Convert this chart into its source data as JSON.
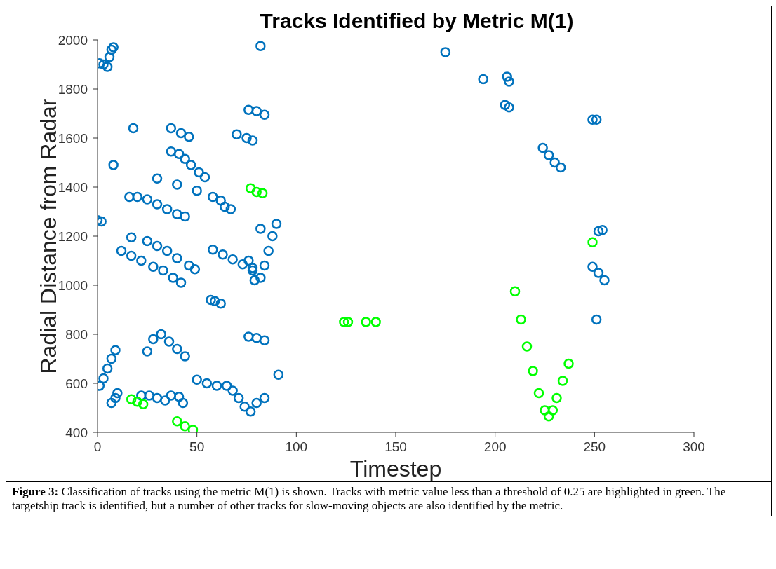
{
  "chart_data": {
    "type": "scatter",
    "title": "Tracks Identified by Metric M(1)",
    "xlabel": "Timestep",
    "ylabel": "Radial Distance from Radar",
    "xlim": [
      0,
      300
    ],
    "xticks": [
      0,
      50,
      100,
      150,
      200,
      250,
      300
    ],
    "ylim": [
      400,
      2000
    ],
    "yticks": [
      400,
      600,
      800,
      1000,
      1200,
      1400,
      1600,
      1800,
      2000
    ],
    "grid": false,
    "legend": false,
    "marker": "circle",
    "series": [
      {
        "color": "#0072bd",
        "x": [
          1,
          3,
          5,
          6,
          7,
          8,
          18,
          8,
          0,
          2,
          1,
          3,
          5,
          7,
          9,
          7,
          9,
          10,
          16,
          20,
          25,
          30,
          35,
          40,
          44,
          30,
          40,
          50,
          58,
          62,
          37,
          42,
          46,
          37,
          41,
          44,
          47,
          51,
          54,
          64,
          67,
          70,
          75,
          78,
          76,
          80,
          84,
          82,
          82,
          17,
          25,
          30,
          35,
          40,
          46,
          49,
          12,
          17,
          22,
          28,
          33,
          38,
          42,
          58,
          63,
          68,
          73,
          78,
          76,
          78,
          79,
          82,
          84,
          86,
          88,
          90,
          57,
          59,
          62,
          25,
          28,
          32,
          36,
          40,
          44,
          76,
          80,
          84,
          50,
          55,
          60,
          65,
          68,
          71,
          74,
          77,
          80,
          84,
          91,
          22,
          26,
          30,
          34,
          37,
          41,
          43,
          175,
          194,
          206,
          207,
          205,
          207,
          249,
          251,
          224,
          227,
          230,
          233,
          252,
          254,
          249,
          252,
          255,
          251
        ],
        "values": [
          1905,
          1900,
          1890,
          1930,
          1960,
          1970,
          1640,
          1490,
          1265,
          1260,
          590,
          620,
          660,
          700,
          735,
          520,
          540,
          560,
          1360,
          1360,
          1350,
          1330,
          1310,
          1290,
          1280,
          1435,
          1410,
          1385,
          1360,
          1345,
          1640,
          1620,
          1605,
          1545,
          1535,
          1515,
          1490,
          1460,
          1440,
          1320,
          1310,
          1615,
          1600,
          1590,
          1715,
          1710,
          1695,
          1975,
          1230,
          1195,
          1180,
          1160,
          1140,
          1110,
          1080,
          1065,
          1140,
          1120,
          1100,
          1075,
          1060,
          1030,
          1010,
          1145,
          1125,
          1105,
          1085,
          1060,
          1100,
          1070,
          1020,
          1030,
          1080,
          1140,
          1200,
          1250,
          940,
          935,
          925,
          730,
          780,
          800,
          770,
          740,
          710,
          790,
          785,
          775,
          615,
          600,
          590,
          590,
          570,
          540,
          505,
          485,
          520,
          540,
          635,
          550,
          550,
          540,
          530,
          550,
          545,
          520,
          1950,
          1840,
          1850,
          1830,
          1735,
          1725,
          1675,
          1675,
          1560,
          1530,
          1500,
          1480,
          1220,
          1225,
          1075,
          1050,
          1020,
          860
        ]
      },
      {
        "color": "#00ff00",
        "x": [
          17,
          20,
          23,
          40,
          44,
          48,
          77,
          80,
          83,
          124,
          126,
          135,
          140,
          249,
          210,
          213,
          216,
          219,
          222,
          225,
          227,
          229,
          231,
          234,
          237
        ],
        "values": [
          535,
          525,
          515,
          445,
          425,
          410,
          1395,
          1380,
          1375,
          850,
          850,
          850,
          850,
          1175,
          975,
          860,
          750,
          650,
          560,
          490,
          465,
          490,
          540,
          610,
          680
        ]
      }
    ],
    "annotations": [
      "Figure 3: Classification of tracks using the metric M(1) is shown.  Tracks with metric value less than a threshold of 0.25 are highlighted in green.  The targetship track is identified, but a number of other tracks for slow-moving objects are also identified by the metric."
    ]
  }
}
